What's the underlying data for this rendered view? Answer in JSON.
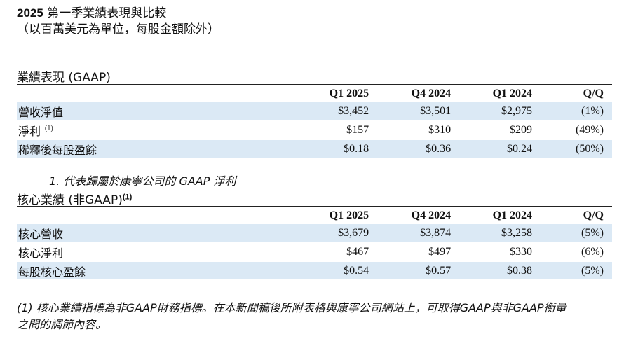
{
  "header": {
    "title_year": "2025",
    "title_rest": " 第一季業績表現與比較",
    "subtitle": "（以百萬美元為單位，每股金額除外）"
  },
  "gaap": {
    "title": "業績表現 (GAAP)",
    "columns": [
      "Q1 2025",
      "Q4 2024",
      "Q1 2024",
      "Q/Q"
    ],
    "rows": [
      {
        "label": "營收淨值",
        "sup": "",
        "values": [
          "$3,452",
          "$3,501",
          "$2,975",
          "(1%)"
        ]
      },
      {
        "label": "淨利",
        "sup": "(1)",
        "values": [
          "$157",
          "$310",
          "$209",
          "(49%)"
        ]
      },
      {
        "label": "稀釋後每股盈餘",
        "sup": "",
        "values": [
          "$0.18",
          "$0.36",
          "$0.24",
          "(50%)"
        ]
      }
    ],
    "footnote": "1.  代表歸屬於康寧公司的 GAAP 淨利"
  },
  "core": {
    "title": "核心業績 (非GAAP)",
    "title_sup": "(1)",
    "columns": [
      "Q1 2025",
      "Q4 2024",
      "Q1 2024",
      "Q/Q"
    ],
    "rows": [
      {
        "label": "核心營收",
        "values": [
          "$3,679",
          "$3,874",
          "$3,258",
          "(5%)"
        ]
      },
      {
        "label": "核心淨利",
        "values": [
          "$467",
          "$497",
          "$330",
          "(6%)"
        ]
      },
      {
        "label": "每股核心盈餘",
        "values": [
          "$0.54",
          "$0.57",
          "$0.38",
          "(5%)"
        ]
      }
    ]
  },
  "note": {
    "line1": "(1) 核心業績指標為非GAAP財務指標。在本新聞稿後所附表格與康寧公司網站上，可取得GAAP與非GAAP衡量",
    "line2": "之間的調節內容。"
  }
}
